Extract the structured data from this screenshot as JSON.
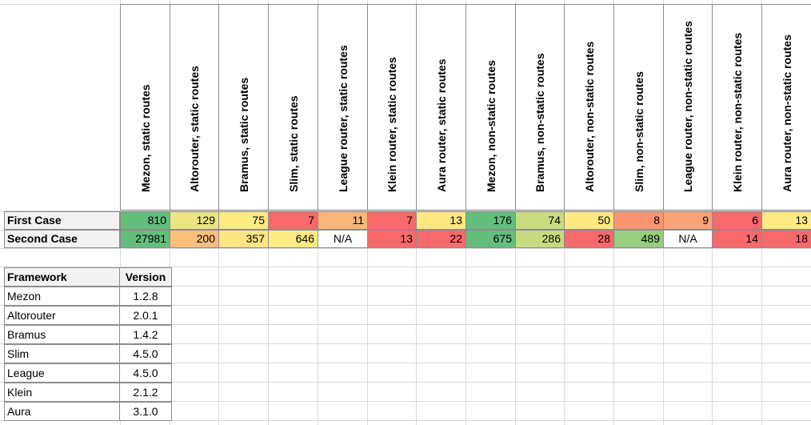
{
  "columns": [
    "Mezon, static routes",
    "Altorouter, static routes",
    "Bramus, static routes",
    "Slim, static routes",
    "League router, static routes",
    "Klein router, static routes",
    "Aura router, static routes",
    "Mezon, non-static routes",
    "Bramus, non-static routes",
    "Altorouter, non-static routes",
    "Slim, non-static routes",
    "League router, non-static routes",
    "Klein router, non-static routes",
    "Aura router, non-static routes"
  ],
  "rows": [
    {
      "label": "First Case",
      "values": [
        "810",
        "129",
        "75",
        "7",
        "11",
        "7",
        "13",
        "176",
        "74",
        "50",
        "8",
        "9",
        "6",
        "13"
      ],
      "colors": [
        "#63be7b",
        "#eae582",
        "#ffeb84",
        "#f8696b",
        "#fcb579",
        "#f8696b",
        "#ffe883",
        "#63be7b",
        "#c9db80",
        "#ffe983",
        "#fa9473",
        "#fba276",
        "#f8696b",
        "#ffeb84"
      ]
    },
    {
      "label": "Second Case",
      "values": [
        "27981",
        "200",
        "357",
        "646",
        "N/A",
        "13",
        "22",
        "675",
        "286",
        "28",
        "489",
        "N/A",
        "14",
        "18"
      ],
      "colors": [
        "#63be7b",
        "#fcbe7b",
        "#ffe583",
        "#ffeb84",
        "#ffffff",
        "#f8696b",
        "#f8696b",
        "#63be7b",
        "#c6da80",
        "#f8696b",
        "#96cd7e",
        "#ffffff",
        "#f8696b",
        "#f8696b"
      ]
    }
  ],
  "framework_table": {
    "headers": [
      "Framework",
      "Version"
    ],
    "rows": [
      [
        "Mezon",
        "1.2.8"
      ],
      [
        "Altorouter",
        "2.0.1"
      ],
      [
        "Bramus",
        "1.4.2"
      ],
      [
        "Slim",
        "4.5.0"
      ],
      [
        "League",
        "4.5.0"
      ],
      [
        "Klein",
        "2.1.2"
      ],
      [
        "Aura",
        "3.1.0"
      ]
    ]
  }
}
